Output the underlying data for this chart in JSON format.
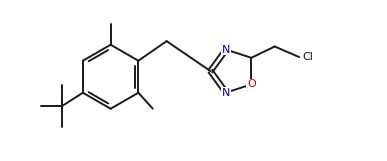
{
  "bg_color": "#ffffff",
  "line_color": "#1a1a1a",
  "line_width": 1.4,
  "N_color": "#0000bb",
  "O_color": "#cc0000",
  "Cl_color": "#1a1a1a",
  "font_size": 8,
  "figsize": [
    3.87,
    1.61
  ],
  "dpi": 100,
  "xlim": [
    0,
    10
  ],
  "ylim": [
    0,
    4.2
  ]
}
